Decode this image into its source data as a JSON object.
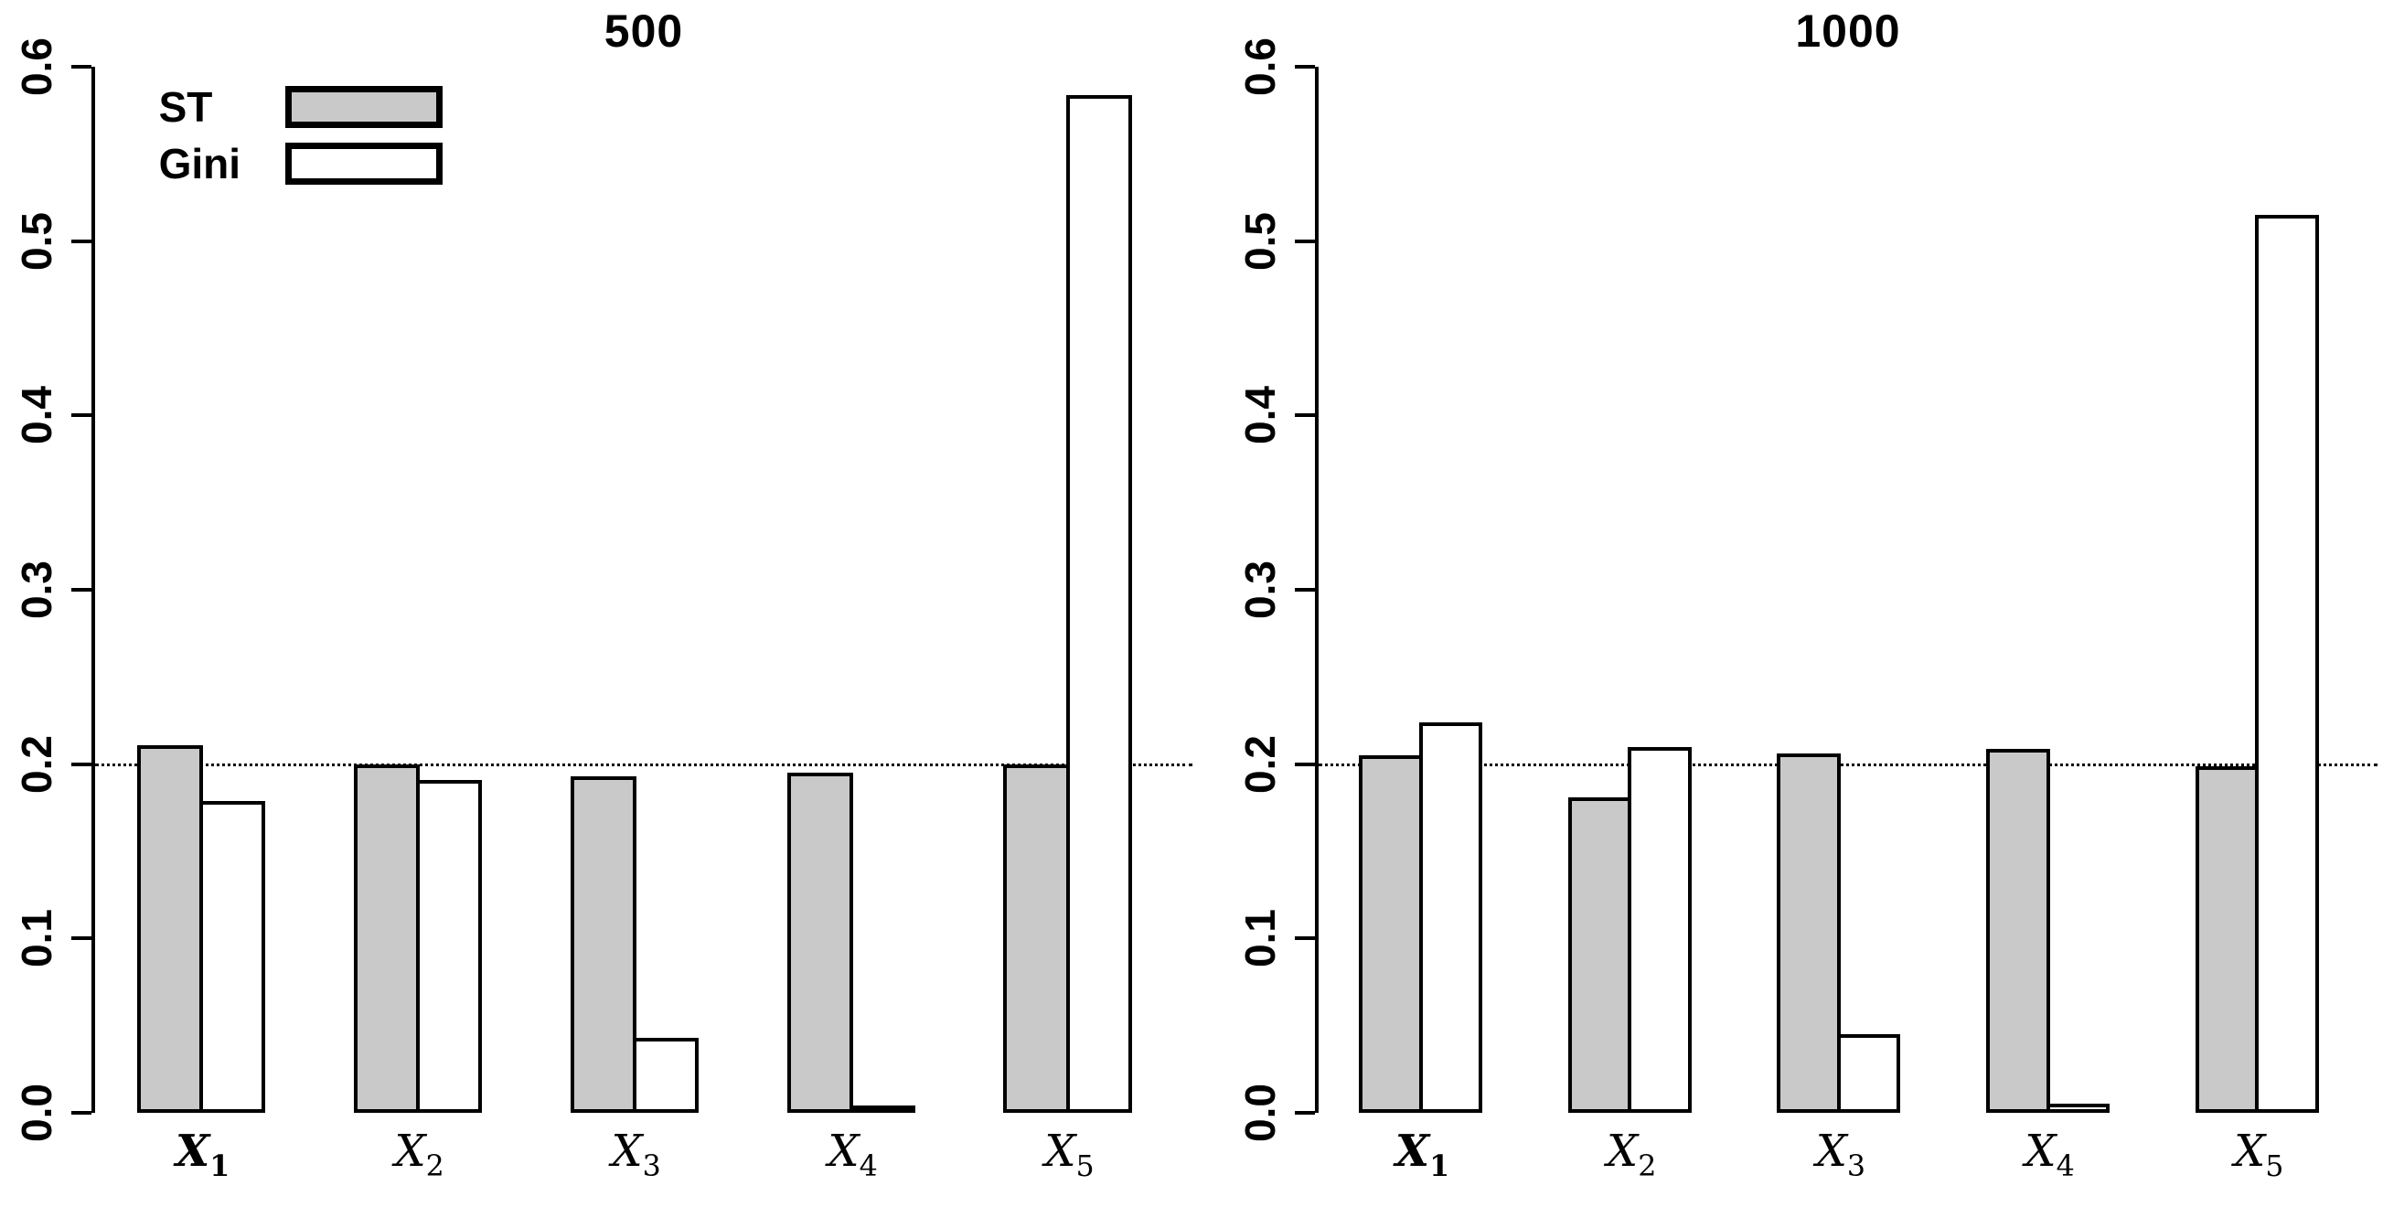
{
  "colors": {
    "st_fill": "#c9c9c9",
    "gini_fill": "#ffffff",
    "stroke": "#000000",
    "background": "#ffffff"
  },
  "legend": {
    "st_label": "ST",
    "gini_label": "Gini"
  },
  "chart_data": [
    {
      "type": "bar",
      "title": "500",
      "categories": [
        {
          "base": "X",
          "sub": "1",
          "bold": true
        },
        {
          "base": "X",
          "sub": "2",
          "bold": false
        },
        {
          "base": "X",
          "sub": "3",
          "bold": false
        },
        {
          "base": "X",
          "sub": "4",
          "bold": false
        },
        {
          "base": "X",
          "sub": "5",
          "bold": false
        }
      ],
      "series": [
        {
          "name": "ST",
          "values": [
            0.211,
            0.2,
            0.193,
            0.195,
            0.2
          ]
        },
        {
          "name": "Gini",
          "values": [
            0.179,
            0.191,
            0.043,
            0.004,
            0.584
          ]
        }
      ],
      "ylim": [
        0,
        0.6
      ],
      "ytick_labels": [
        "0.0",
        "0.1",
        "0.2",
        "0.3",
        "0.4",
        "0.5",
        "0.6"
      ],
      "reference_line": 0.2,
      "grid": false,
      "legend_position": "top-left",
      "xlabel": "",
      "ylabel": ""
    },
    {
      "type": "bar",
      "title": "1000",
      "categories": [
        {
          "base": "X",
          "sub": "1",
          "bold": true
        },
        {
          "base": "X",
          "sub": "2",
          "bold": false
        },
        {
          "base": "X",
          "sub": "3",
          "bold": false
        },
        {
          "base": "X",
          "sub": "4",
          "bold": false
        },
        {
          "base": "X",
          "sub": "5",
          "bold": false
        }
      ],
      "series": [
        {
          "name": "ST",
          "values": [
            0.205,
            0.181,
            0.206,
            0.209,
            0.199
          ]
        },
        {
          "name": "Gini",
          "values": [
            0.224,
            0.21,
            0.045,
            0.005,
            0.515
          ]
        }
      ],
      "ylim": [
        0,
        0.6
      ],
      "ytick_labels": [
        "0.0",
        "0.1",
        "0.2",
        "0.3",
        "0.4",
        "0.5",
        "0.6"
      ],
      "reference_line": 0.2,
      "grid": false,
      "legend_position": "none",
      "xlabel": "",
      "ylabel": ""
    }
  ]
}
